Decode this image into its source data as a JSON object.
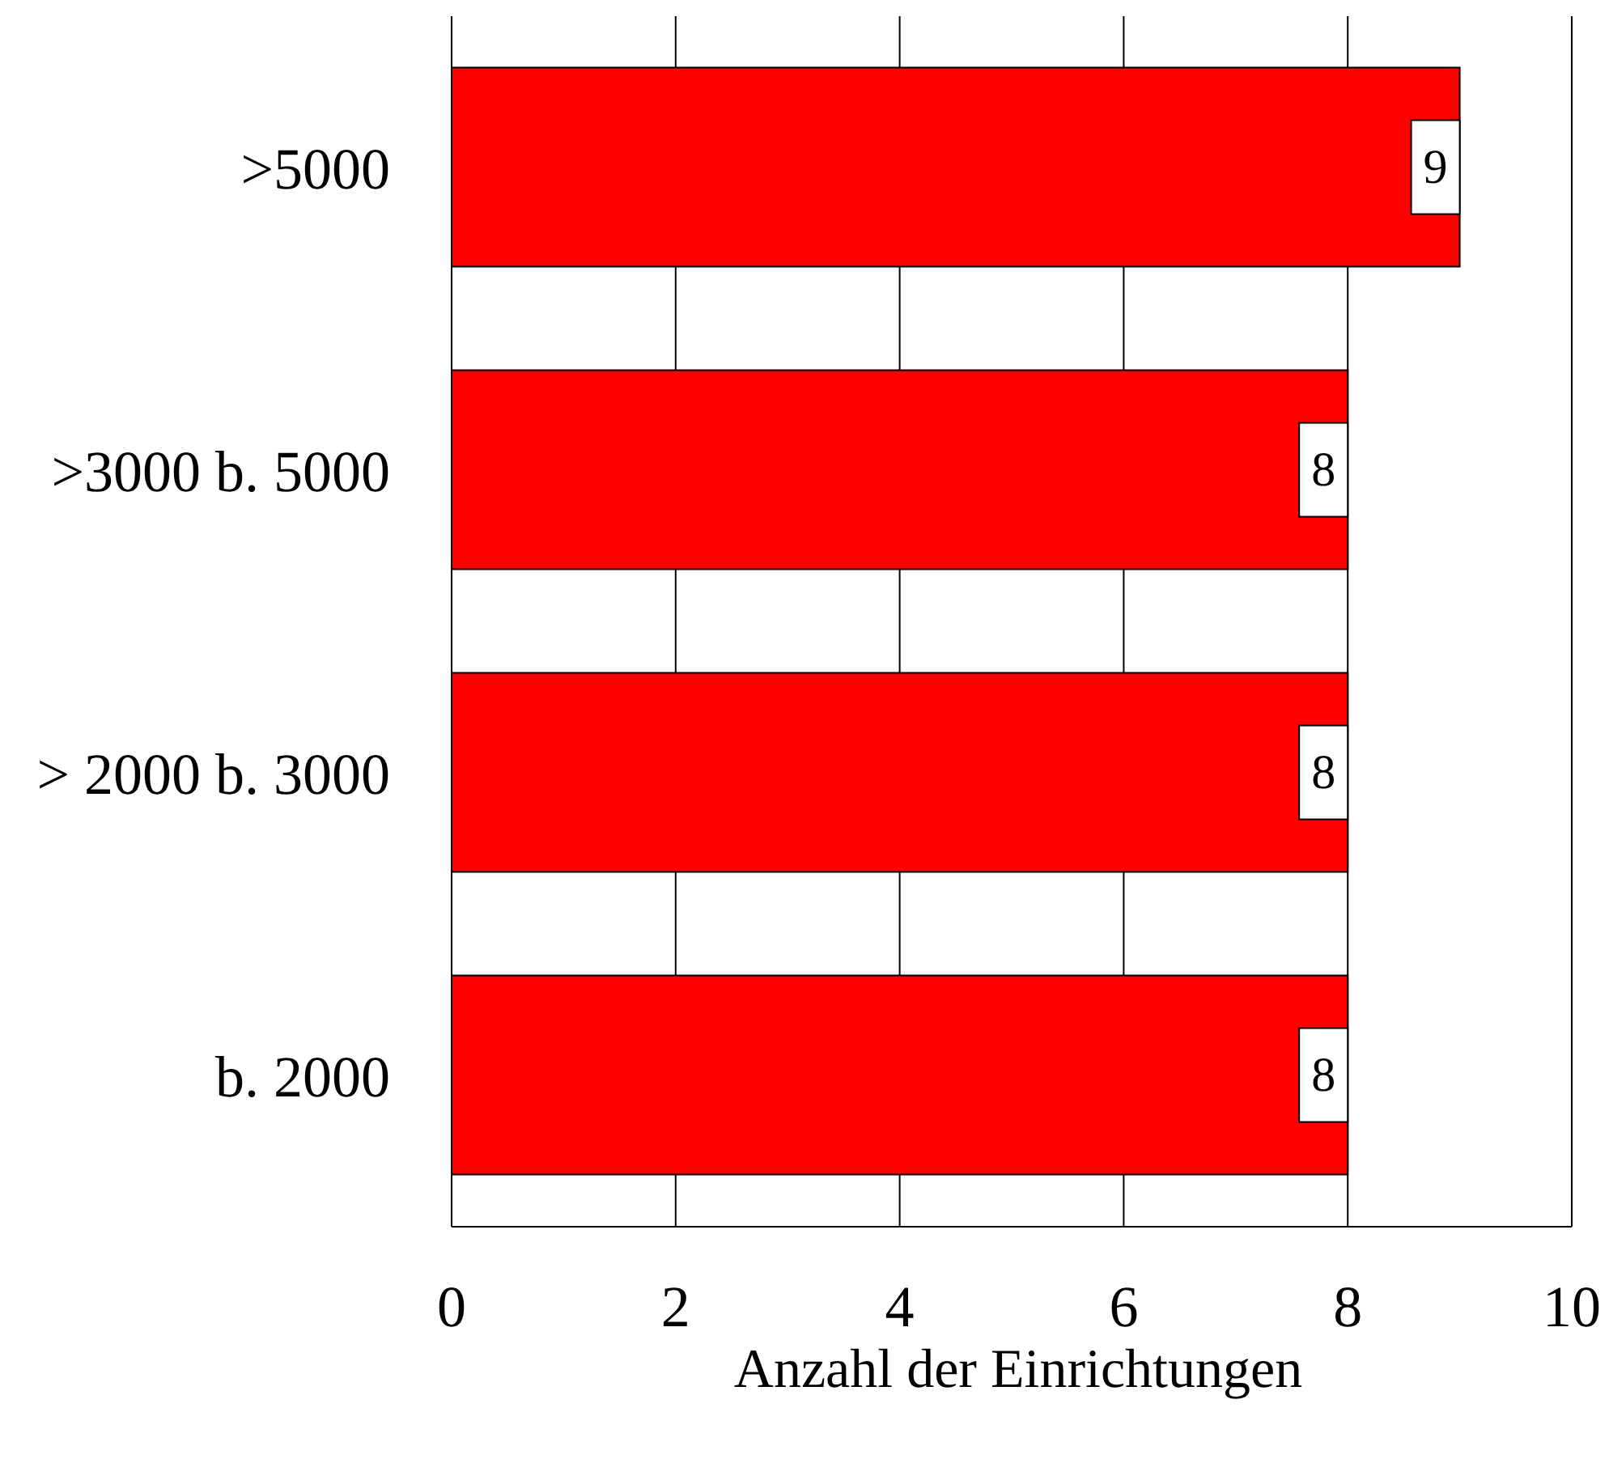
{
  "chart_data": {
    "type": "bar",
    "orientation": "horizontal",
    "xlabel": "Anzahl der Einrichtungen",
    "categories": [
      ">5000",
      ">3000 b. 5000",
      "> 2000 b. 3000",
      "b. 2000"
    ],
    "values": [
      9,
      8,
      8,
      8
    ],
    "color": "#ff0000",
    "xlim": [
      0,
      10
    ],
    "xticks": [
      0,
      2,
      4,
      6,
      8,
      10
    ],
    "grid": "x",
    "data_labels": true
  }
}
